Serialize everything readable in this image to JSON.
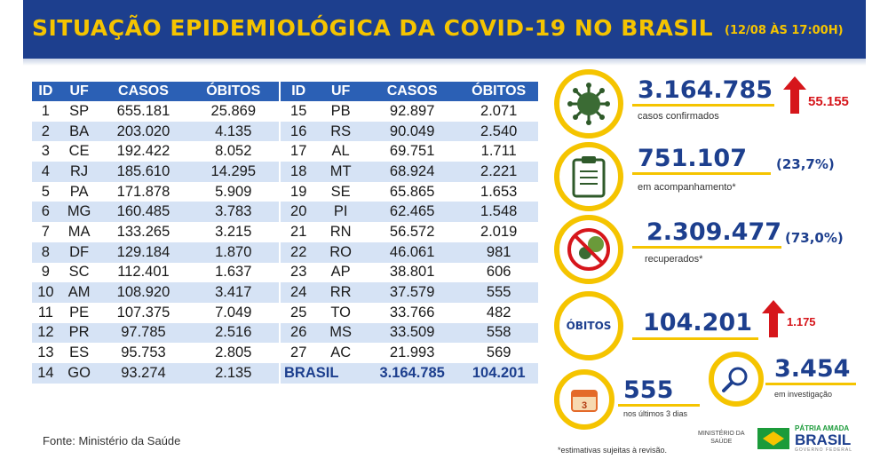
{
  "header": {
    "title": "SITUAÇÃO EPIDEMIOLÓGICA DA COVID-19 NO BRASIL",
    "date": "(12/08 ÀS 17:00H)"
  },
  "table": {
    "columns": [
      "ID",
      "UF",
      "CASOS",
      "ÓBITOS"
    ],
    "left_rows": [
      [
        "1",
        "SP",
        "655.181",
        "25.869"
      ],
      [
        "2",
        "BA",
        "203.020",
        "4.135"
      ],
      [
        "3",
        "CE",
        "192.422",
        "8.052"
      ],
      [
        "4",
        "RJ",
        "185.610",
        "14.295"
      ],
      [
        "5",
        "PA",
        "171.878",
        "5.909"
      ],
      [
        "6",
        "MG",
        "160.485",
        "3.783"
      ],
      [
        "7",
        "MA",
        "133.265",
        "3.215"
      ],
      [
        "8",
        "DF",
        "129.184",
        "1.870"
      ],
      [
        "9",
        "SC",
        "112.401",
        "1.637"
      ],
      [
        "10",
        "AM",
        "108.920",
        "3.417"
      ],
      [
        "11",
        "PE",
        "107.375",
        "7.049"
      ],
      [
        "12",
        "PR",
        "97.785",
        "2.516"
      ],
      [
        "13",
        "ES",
        "95.753",
        "2.805"
      ],
      [
        "14",
        "GO",
        "93.274",
        "2.135"
      ]
    ],
    "right_rows": [
      [
        "15",
        "PB",
        "92.897",
        "2.071"
      ],
      [
        "16",
        "RS",
        "90.049",
        "2.540"
      ],
      [
        "17",
        "AL",
        "69.751",
        "1.711"
      ],
      [
        "18",
        "MT",
        "68.924",
        "2.221"
      ],
      [
        "19",
        "SE",
        "65.865",
        "1.653"
      ],
      [
        "20",
        "PI",
        "62.465",
        "1.548"
      ],
      [
        "21",
        "RN",
        "56.572",
        "2.019"
      ],
      [
        "22",
        "RO",
        "46.061",
        "981"
      ],
      [
        "23",
        "AP",
        "38.801",
        "606"
      ],
      [
        "24",
        "RR",
        "37.579",
        "555"
      ],
      [
        "25",
        "TO",
        "33.766",
        "482"
      ],
      [
        "26",
        "MS",
        "33.509",
        "558"
      ],
      [
        "27",
        "AC",
        "21.993",
        "569"
      ]
    ],
    "total": {
      "label": "BRASIL",
      "casos": "3.164.785",
      "obitos": "104.201"
    }
  },
  "source": "Fonte: Ministério da Saúde",
  "indicators": {
    "confirmed": {
      "value": "3.164.785",
      "label": "casos confirmados",
      "increase": "55.155",
      "icon": "virus-icon"
    },
    "monitoring": {
      "value": "751.107",
      "pct": "(23,7%)",
      "label": "em acompanhamento*",
      "icon": "clipboard-icon"
    },
    "recovered": {
      "value": "2.309.477",
      "pct": "(73,0%)",
      "label": "recuperados*",
      "icon": "virus-crossed-icon"
    },
    "deaths": {
      "badge": "ÓBITOS",
      "value": "104.201",
      "increase": "1.175"
    },
    "investigation": {
      "value": "3.454",
      "label": "em investigação",
      "icon": "magnifier-icon"
    },
    "last3days": {
      "value": "555",
      "label": "nos últimos 3 dias",
      "icon": "calendar-icon"
    }
  },
  "footnote": "*estimativas sujeitas à revisão.",
  "logos": {
    "ministerio_line1": "MINISTÉRIO DA",
    "ministerio_line2": "SAÚDE",
    "gov_tag": "PÁTRIA AMADA",
    "gov_name": "BRASIL",
    "gov_sub": "GOVERNO FEDERAL"
  },
  "colors": {
    "navy": "#1d3f8e",
    "yellow": "#f5c400",
    "table_header": "#2b60b5",
    "row_alt": "#d6e3f5",
    "red": "#d6161b"
  }
}
